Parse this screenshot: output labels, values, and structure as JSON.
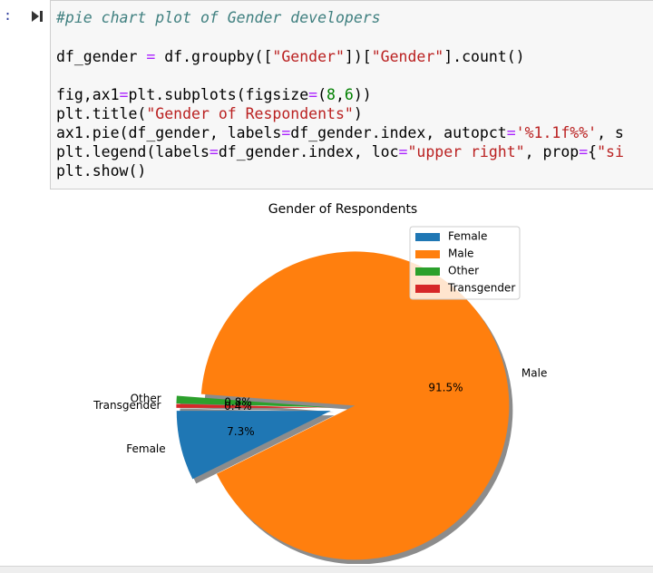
{
  "cell": {
    "prompt": ":",
    "code_lines": [
      "#pie chart plot of Gender developers",
      "df_gender = df.groupby([\"Gender\"])[\"Gender\"].count()",
      "fig,ax1=plt.subplots(figsize=(8,6))",
      "plt.title(\"Gender of Respondents\")",
      "ax1.pie(df_gender, labels=df_gender.index, autopct='%1.1f%%', s",
      "plt.legend(labels=df_gender.index, loc=\"upper right\", prop={\"si",
      "plt.show()"
    ]
  },
  "chart_data": {
    "type": "pie",
    "title": "Gender of Respondents",
    "categories": [
      "Female",
      "Male",
      "Other",
      "Transgender"
    ],
    "values": [
      7.3,
      91.5,
      0.8,
      0.4
    ],
    "value_labels": [
      "7.3%",
      "91.5%",
      "0.8%",
      "0.4%"
    ],
    "colors": [
      "#1f77b4",
      "#ff7f0e",
      "#2ca02c",
      "#d62728"
    ],
    "start_angle": 180,
    "shadow": true,
    "legend": "upper right"
  }
}
